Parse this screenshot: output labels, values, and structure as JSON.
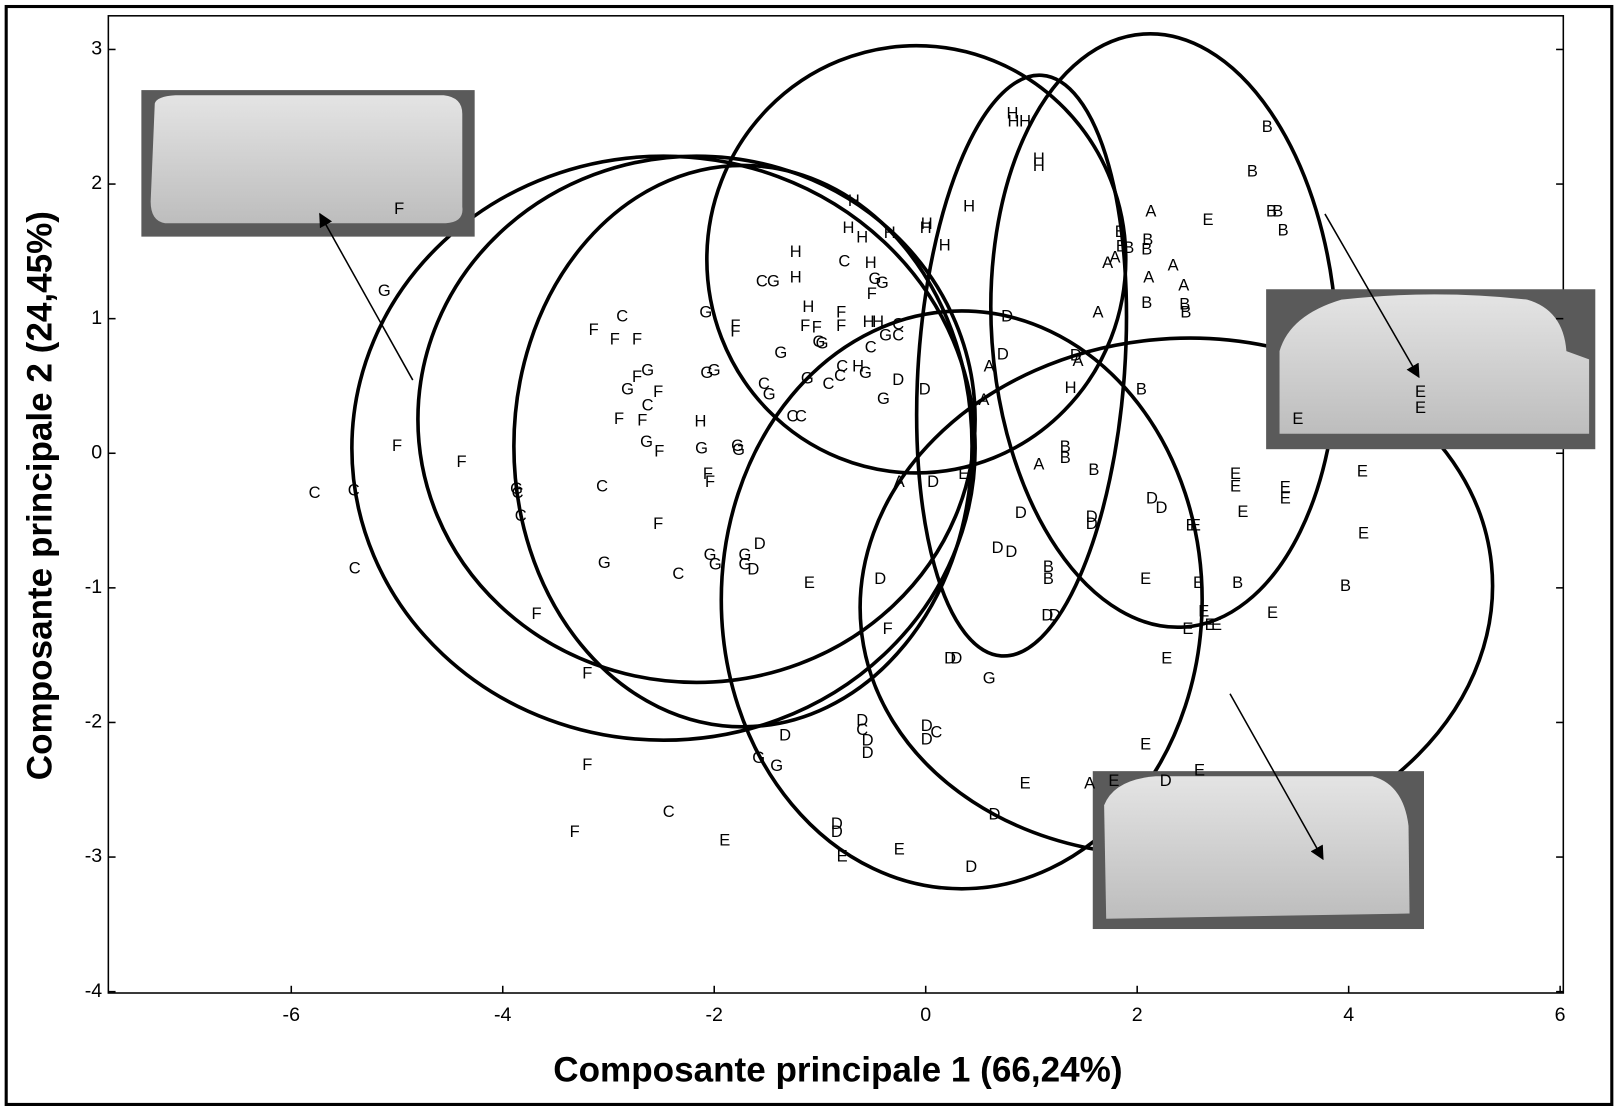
{
  "chart_data": {
    "type": "scatter",
    "x_label": "Composante principale 1 (66,24%)",
    "y_label": "Composante principale 2 (24,45%)",
    "xlim": [
      -7.73,
      6.03
    ],
    "ylim": [
      -4.01,
      3.25
    ],
    "xticks": [
      -6,
      -4,
      -2,
      0,
      2,
      4,
      6
    ],
    "yticks": [
      -4,
      -3,
      -2,
      -1,
      0,
      1,
      2,
      3
    ],
    "color": "#000000",
    "series": [
      {
        "name": "A",
        "x": [
          -0.25,
          0.55,
          0.6,
          1.07,
          1.44,
          1.63,
          1.72,
          1.79,
          2.13,
          2.11,
          2.34,
          2.44,
          1.55
        ],
        "y": [
          -0.22,
          0.39,
          0.64,
          -0.09,
          0.68,
          1.04,
          1.41,
          1.45,
          1.79,
          1.3,
          1.39,
          1.24,
          -2.46
        ]
      },
      {
        "name": "B",
        "x": [
          1.32,
          1.32,
          1.59,
          1.84,
          1.85,
          1.92,
          2.1,
          2.09,
          2.09,
          2.04,
          1.16,
          1.16,
          2.45,
          2.46,
          2.95,
          3.09,
          3.23,
          3.27,
          3.33,
          3.38,
          3.97
        ],
        "y": [
          0.04,
          -0.04,
          -0.13,
          1.64,
          1.53,
          1.52,
          1.58,
          1.51,
          1.11,
          0.47,
          -0.85,
          -0.94,
          1.1,
          1.04,
          -0.97,
          2.09,
          2.42,
          1.79,
          1.79,
          1.65,
          -0.99
        ]
      },
      {
        "name": "C",
        "x": [
          -5.78,
          -5.41,
          -5.4,
          -3.86,
          -3.83,
          -3.06,
          -2.87,
          -2.63,
          -2.34,
          -2.43,
          -1.55,
          -1.53,
          -1.26,
          -1.18,
          -0.77,
          -0.92,
          -0.79,
          -0.81,
          -0.52,
          -0.26,
          -0.26,
          0.1,
          -0.6
        ],
        "y": [
          -0.3,
          -0.28,
          -0.86,
          -0.3,
          -0.47,
          -0.25,
          1.01,
          0.35,
          -0.9,
          -2.67,
          1.27,
          0.51,
          0.27,
          0.27,
          1.42,
          0.51,
          0.64,
          0.57,
          0.78,
          0.95,
          0.87,
          -2.08,
          -2.06
        ]
      },
      {
        "name": "D",
        "x": [
          0.77,
          0.73,
          -0.26,
          -0.01,
          0.07,
          0.9,
          0.68,
          0.81,
          1.57,
          1.57,
          2.14,
          2.23,
          1.15,
          1.22,
          0.23,
          0.29,
          -0.43,
          -1.57,
          -1.63,
          -1.33,
          -0.6,
          -0.55,
          -0.55,
          0.01,
          0.01,
          -0.84,
          -0.84,
          0.65,
          0.43,
          2.27,
          1.42
        ],
        "y": [
          1.01,
          0.73,
          0.54,
          0.47,
          -0.22,
          -0.45,
          -0.71,
          -0.74,
          -0.48,
          -0.53,
          -0.34,
          -0.41,
          -1.21,
          -1.21,
          -1.53,
          -1.53,
          -0.94,
          -0.68,
          -0.87,
          -2.1,
          -1.99,
          -2.14,
          -2.23,
          -2.03,
          -2.13,
          -2.76,
          -2.82,
          -2.69,
          -3.08,
          -2.44,
          0.72
        ]
      },
      {
        "name": "E",
        "x": [
          -1.1,
          0.36,
          -0.79,
          -0.25,
          -1.9,
          0.94,
          1.78,
          2.08,
          2.08,
          2.28,
          2.51,
          2.55,
          2.58,
          2.63,
          2.69,
          2.75,
          2.48,
          2.59,
          2.93,
          2.93,
          3.0,
          3.4,
          3.4,
          3.28,
          4.13,
          4.14,
          2.67,
          3.52,
          4.68,
          4.68
        ],
        "y": [
          -0.97,
          -0.16,
          -3.0,
          -2.95,
          -2.88,
          -2.46,
          -2.44,
          -0.94,
          -2.17,
          -1.53,
          -0.54,
          -0.54,
          -0.97,
          -1.18,
          -1.28,
          -1.28,
          -1.31,
          -2.36,
          -0.16,
          -0.25,
          -0.44,
          -0.26,
          -0.34,
          -1.19,
          -0.14,
          -0.6,
          1.73,
          0.25,
          0.45,
          0.33
        ]
      },
      {
        "name": "F",
        "x": [
          -4.98,
          -5.0,
          -4.39,
          -3.14,
          -2.94,
          -2.73,
          -2.73,
          -2.53,
          -2.9,
          -2.68,
          -2.52,
          -2.53,
          -2.06,
          -2.04,
          -1.8,
          -1.8,
          -3.68,
          -3.2,
          -3.2,
          -3.32,
          -1.14,
          -1.03,
          -0.8,
          -0.8,
          -0.51,
          -0.36
        ],
        "y": [
          1.81,
          0.05,
          -0.07,
          0.91,
          0.84,
          0.84,
          0.56,
          0.45,
          0.25,
          0.24,
          0.01,
          -0.53,
          -0.16,
          -0.22,
          0.94,
          0.9,
          -1.2,
          -1.64,
          -2.32,
          -2.82,
          0.94,
          0.93,
          1.04,
          0.94,
          1.18,
          -1.31
        ]
      },
      {
        "name": "G",
        "x": [
          -5.12,
          -3.87,
          -3.04,
          -2.82,
          -2.63,
          -2.64,
          -2.08,
          -2.0,
          -2.07,
          -2.12,
          -2.04,
          -1.99,
          -1.78,
          -1.77,
          -1.71,
          -1.71,
          -1.44,
          -1.48,
          -1.37,
          -1.01,
          -0.98,
          -1.12,
          -0.57,
          -0.48,
          -0.41,
          -0.4,
          -0.38,
          -1.58,
          -1.41,
          0.6
        ],
        "y": [
          1.2,
          -0.27,
          -0.82,
          0.47,
          0.61,
          0.08,
          1.04,
          0.61,
          0.59,
          0.03,
          -0.76,
          -0.83,
          0.05,
          0.02,
          -0.76,
          -0.83,
          1.27,
          0.43,
          0.74,
          0.82,
          0.81,
          0.55,
          0.59,
          1.29,
          1.26,
          0.4,
          0.87,
          -2.27,
          -2.33,
          -1.68
        ]
      },
      {
        "name": "H",
        "x": [
          -2.13,
          -1.23,
          -1.23,
          -1.11,
          -0.68,
          -0.73,
          -0.6,
          -0.52,
          -0.64,
          -0.54,
          -0.45,
          -0.34,
          0.0,
          0.01,
          0.18,
          0.41,
          0.82,
          0.83,
          0.94,
          1.07,
          1.07,
          1.37
        ],
        "y": [
          0.23,
          1.49,
          1.3,
          1.08,
          1.87,
          1.67,
          1.6,
          1.41,
          0.64,
          0.97,
          0.97,
          1.63,
          1.67,
          1.7,
          1.54,
          1.83,
          2.52,
          2.46,
          2.46,
          2.18,
          2.13,
          0.48
        ]
      }
    ]
  }
}
